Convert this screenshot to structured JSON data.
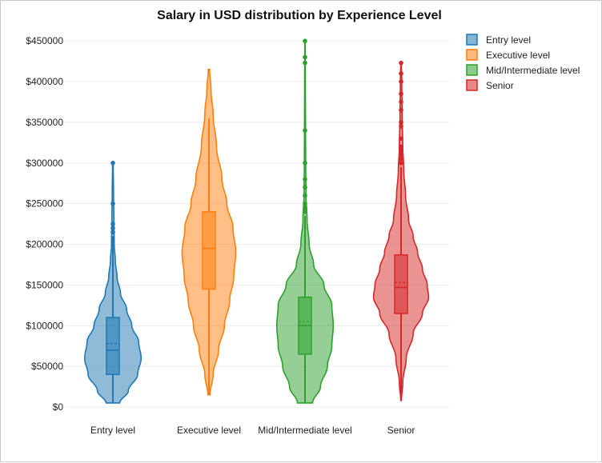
{
  "chart_data": {
    "type": "violin",
    "title": "Salary in USD distribution by Experience Level",
    "xlabel": "",
    "ylabel": "",
    "ylim": [
      0,
      460000
    ],
    "y_ticks": [
      0,
      50000,
      100000,
      150000,
      200000,
      250000,
      300000,
      350000,
      400000,
      450000
    ],
    "y_tick_labels": [
      "$0",
      "$50000",
      "$100000",
      "$150000",
      "$200000",
      "$250000",
      "$300000",
      "$350000",
      "$400000",
      "$450000"
    ],
    "grid": true,
    "legend_position": "top-right",
    "categories": [
      "Entry level",
      "Executive level",
      "Mid/Intermediate level",
      "Senior"
    ],
    "series": [
      {
        "name": "Entry level",
        "color": "#1f77b4",
        "box": {
          "min": 5000,
          "q1": 40000,
          "median": 70000,
          "mean": 78000,
          "q3": 110000,
          "upper_whisker": 210000
        },
        "outliers": [
          215000,
          220000,
          225000,
          250000,
          300000
        ],
        "density": [
          [
            5000,
            0.2
          ],
          [
            20000,
            0.45
          ],
          [
            40000,
            0.72
          ],
          [
            60000,
            0.82
          ],
          [
            80000,
            0.75
          ],
          [
            100000,
            0.55
          ],
          [
            120000,
            0.4
          ],
          [
            140000,
            0.22
          ],
          [
            160000,
            0.12
          ],
          [
            180000,
            0.07
          ],
          [
            200000,
            0.04
          ],
          [
            230000,
            0.03
          ],
          [
            260000,
            0.02
          ],
          [
            300000,
            0.01
          ]
        ]
      },
      {
        "name": "Executive level",
        "color": "#ff7f0e",
        "box": {
          "min": 15000,
          "q1": 145000,
          "median": 195000,
          "mean": 195000,
          "q3": 240000,
          "upper_whisker": 355000
        },
        "outliers": [],
        "density": [
          [
            15000,
            0.03
          ],
          [
            40000,
            0.12
          ],
          [
            70000,
            0.28
          ],
          [
            100000,
            0.45
          ],
          [
            130000,
            0.6
          ],
          [
            160000,
            0.72
          ],
          [
            190000,
            0.78
          ],
          [
            220000,
            0.7
          ],
          [
            250000,
            0.52
          ],
          [
            280000,
            0.38
          ],
          [
            320000,
            0.22
          ],
          [
            360000,
            0.12
          ],
          [
            390000,
            0.06
          ],
          [
            415000,
            0.02
          ]
        ]
      },
      {
        "name": "Mid/Intermediate level",
        "color": "#2ca02c",
        "box": {
          "min": 5000,
          "q1": 65000,
          "median": 100000,
          "mean": 105000,
          "q3": 135000,
          "upper_whisker": 235000
        },
        "outliers": [
          240000,
          245000,
          250000,
          260000,
          270000,
          280000,
          300000,
          340000,
          423000,
          430000,
          450000
        ],
        "density": [
          [
            5000,
            0.22
          ],
          [
            25000,
            0.45
          ],
          [
            50000,
            0.65
          ],
          [
            75000,
            0.78
          ],
          [
            100000,
            0.82
          ],
          [
            125000,
            0.78
          ],
          [
            150000,
            0.55
          ],
          [
            175000,
            0.25
          ],
          [
            200000,
            0.12
          ],
          [
            230000,
            0.06
          ],
          [
            260000,
            0.03
          ],
          [
            300000,
            0.02
          ],
          [
            340000,
            0.015
          ],
          [
            400000,
            0.01
          ],
          [
            450000,
            0.005
          ]
        ]
      },
      {
        "name": "Senior",
        "color": "#d62728",
        "box": {
          "min": 8000,
          "q1": 115000,
          "median": 147000,
          "mean": 153000,
          "q3": 187000,
          "upper_whisker": 295000
        },
        "outliers": [
          300000,
          305000,
          310000,
          315000,
          320000,
          330000,
          345000,
          350000,
          365000,
          375000,
          385000,
          400000,
          410000,
          423000
        ],
        "density": [
          [
            8000,
            0.01
          ],
          [
            30000,
            0.05
          ],
          [
            60000,
            0.15
          ],
          [
            90000,
            0.35
          ],
          [
            115000,
            0.62
          ],
          [
            135000,
            0.8
          ],
          [
            150000,
            0.76
          ],
          [
            170000,
            0.62
          ],
          [
            190000,
            0.48
          ],
          [
            210000,
            0.35
          ],
          [
            230000,
            0.22
          ],
          [
            260000,
            0.13
          ],
          [
            290000,
            0.08
          ],
          [
            320000,
            0.05
          ],
          [
            360000,
            0.03
          ],
          [
            400000,
            0.02
          ],
          [
            423000,
            0.01
          ]
        ]
      }
    ]
  }
}
